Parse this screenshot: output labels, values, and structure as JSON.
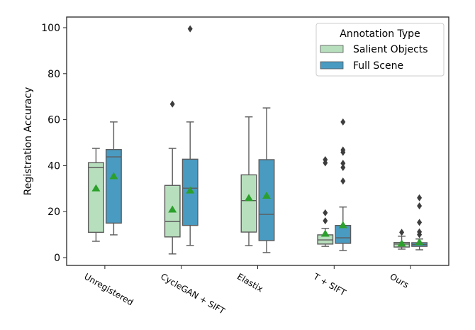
{
  "chart_data": {
    "type": "boxplot",
    "title": "",
    "xlabel": "",
    "ylabel": "Registration Accuracy",
    "ylim": [
      -3,
      104
    ],
    "yticks": [
      0,
      20,
      40,
      60,
      80,
      100
    ],
    "ytick_labels": [
      "0",
      "20",
      "40",
      "60",
      "80",
      "100"
    ],
    "grid": false,
    "categories": [
      "Unregistered",
      "CycleGAN + SIFT",
      "Elastix",
      "T + SIFT",
      "Ours"
    ],
    "legend": {
      "title": "Annotation Type",
      "placement": "top-right",
      "entries": [
        "Salient Objects",
        "Full Scene"
      ]
    },
    "mean_marker_color": "#2ca02c",
    "series": [
      {
        "name": "Salient Objects",
        "color": "#b8dfbd",
        "boxes": [
          {
            "whislo": 7.1,
            "q1": 11.0,
            "med": 39.2,
            "q3": 41.3,
            "whishi": 47.5,
            "mean": 30.2,
            "fliers": []
          },
          {
            "whislo": 1.6,
            "q1": 9.0,
            "med": 15.7,
            "q3": 31.4,
            "whishi": 47.5,
            "mean": 21.0,
            "fliers": [
              66.8
            ]
          },
          {
            "whislo": 5.2,
            "q1": 11.1,
            "med": 24.8,
            "q3": 36.0,
            "whishi": 61.2,
            "mean": 26.0,
            "fliers": []
          },
          {
            "whislo": 4.9,
            "q1": 5.9,
            "med": 7.7,
            "q3": 9.9,
            "whishi": 12.7,
            "mean": 10.5,
            "fliers": [
              16.0,
              19.5,
              41.2,
              42.6
            ]
          },
          {
            "whislo": 3.7,
            "q1": 4.6,
            "med": 5.9,
            "q3": 6.6,
            "whishi": 9.3,
            "mean": 6.2,
            "fliers": [
              11.0
            ]
          }
        ]
      },
      {
        "name": "Full Scene",
        "color": "#4a9bc2",
        "boxes": [
          {
            "whislo": 9.9,
            "q1": 15.0,
            "med": 43.8,
            "q3": 47.0,
            "whishi": 59.0,
            "mean": 35.5,
            "fliers": []
          },
          {
            "whislo": 5.3,
            "q1": 14.0,
            "med": 30.2,
            "q3": 42.8,
            "whishi": 59.0,
            "mean": 29.3,
            "fliers": [
              99.5
            ]
          },
          {
            "whislo": 2.2,
            "q1": 7.4,
            "med": 18.8,
            "q3": 42.6,
            "whishi": 65.1,
            "mean": 27.0,
            "fliers": []
          },
          {
            "whislo": 3.1,
            "q1": 6.2,
            "med": 8.6,
            "q3": 14.0,
            "whishi": 22.0,
            "mean": 14.2,
            "fliers": [
              33.3,
              39.2,
              41.0,
              45.8,
              46.8,
              59.0
            ]
          },
          {
            "whislo": 3.4,
            "q1": 4.9,
            "med": 5.7,
            "q3": 6.5,
            "whishi": 8.1,
            "mean": 6.8,
            "fliers": [
              10.0,
              11.2,
              15.3,
              22.5,
              26.0
            ]
          }
        ]
      }
    ]
  }
}
